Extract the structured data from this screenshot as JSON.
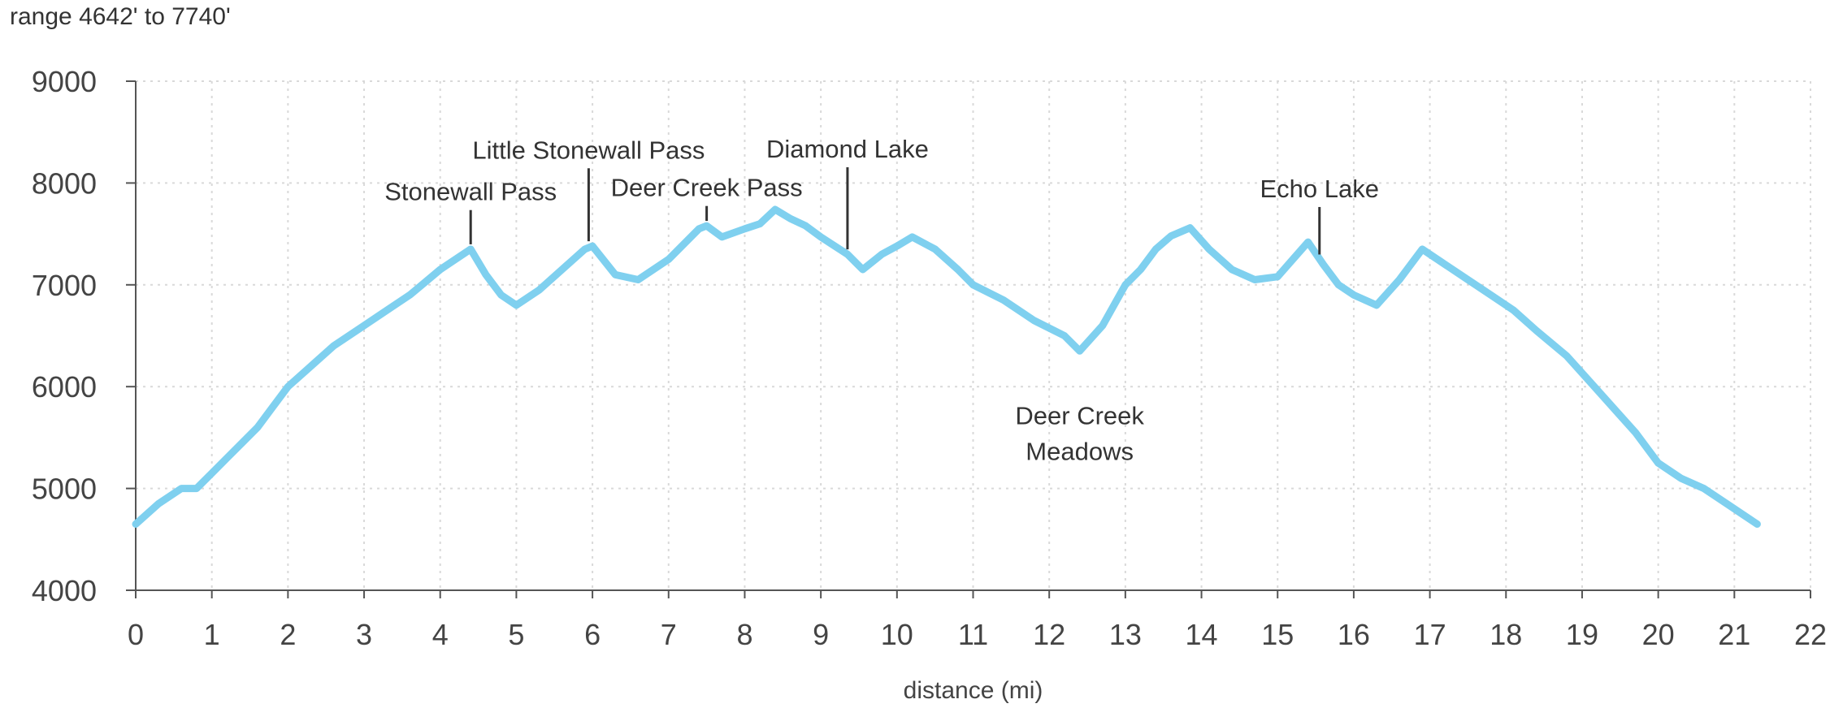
{
  "range_text": "range 4642' to 7740'",
  "chart_data": {
    "type": "line",
    "title": "",
    "xlabel": "distance (mi)",
    "ylabel": "",
    "xlim": [
      0,
      22
    ],
    "ylim": [
      4000,
      9000
    ],
    "x_ticks": [
      0,
      1,
      2,
      3,
      4,
      5,
      6,
      7,
      8,
      9,
      10,
      11,
      12,
      13,
      14,
      15,
      16,
      17,
      18,
      19,
      20,
      21,
      22
    ],
    "y_ticks": [
      4000,
      5000,
      6000,
      7000,
      8000,
      9000
    ],
    "grid": true,
    "line_color": "#7fd0ef",
    "series": [
      {
        "x": [
          0,
          0.3,
          0.6,
          0.8,
          1.0,
          1.2,
          1.4,
          1.6,
          1.8,
          2.0,
          2.3,
          2.6,
          3.0,
          3.3,
          3.6,
          4.0,
          4.2,
          4.4,
          4.6,
          4.8,
          5.0,
          5.3,
          5.6,
          5.9,
          6.0,
          6.3,
          6.6,
          7.0,
          7.4,
          7.5,
          7.7,
          8.0,
          8.2,
          8.4,
          8.6,
          8.8,
          9.0,
          9.35,
          9.55,
          9.8,
          10.0,
          10.2,
          10.5,
          10.8,
          11.0,
          11.4,
          11.8,
          12.2,
          12.4,
          12.7,
          13.0,
          13.2,
          13.4,
          13.6,
          13.85,
          14.1,
          14.4,
          14.7,
          15.0,
          15.2,
          15.4,
          15.6,
          15.8,
          16.0,
          16.3,
          16.6,
          16.9,
          17.2,
          17.5,
          17.8,
          18.1,
          18.4,
          18.8,
          19.1,
          19.4,
          19.7,
          20.0,
          20.3,
          20.6,
          20.9,
          21.1,
          21.3
        ],
        "y": [
          4650,
          4850,
          5000,
          5000,
          5150,
          5300,
          5450,
          5600,
          5800,
          6000,
          6200,
          6400,
          6600,
          6750,
          6900,
          7150,
          7250,
          7350,
          7100,
          6900,
          6800,
          6950,
          7150,
          7350,
          7380,
          7100,
          7050,
          7250,
          7550,
          7580,
          7470,
          7550,
          7600,
          7740,
          7650,
          7580,
          7470,
          7300,
          7150,
          7300,
          7380,
          7470,
          7350,
          7150,
          7000,
          6850,
          6650,
          6500,
          6350,
          6600,
          7000,
          7150,
          7350,
          7480,
          7560,
          7350,
          7150,
          7050,
          7080,
          7250,
          7420,
          7200,
          7000,
          6900,
          6800,
          7050,
          7350,
          7200,
          7050,
          6900,
          6750,
          6550,
          6300,
          6050,
          5800,
          5550,
          5250,
          5100,
          5000,
          4850,
          4750,
          4650
        ]
      }
    ],
    "annotations": [
      {
        "lines": [
          "Stonewall Pass"
        ],
        "x": 4.4,
        "y": 7350,
        "leader": true,
        "position": "above"
      },
      {
        "lines": [
          "Little Stonewall Pass"
        ],
        "x": 5.95,
        "y": 7380,
        "leader": true,
        "position": "above"
      },
      {
        "lines": [
          "Deer Creek Pass"
        ],
        "x": 7.5,
        "y": 7580,
        "leader": true,
        "position": "above"
      },
      {
        "lines": [
          "Diamond Lake"
        ],
        "x": 9.35,
        "y": 7300,
        "leader": true,
        "position": "above"
      },
      {
        "lines": [
          "Deer Creek",
          "Meadows"
        ],
        "x": 12.4,
        "y": 6350,
        "leader": false,
        "position": "below"
      },
      {
        "lines": [
          "Echo Lake"
        ],
        "x": 15.55,
        "y": 7250,
        "leader": true,
        "position": "above"
      }
    ]
  }
}
